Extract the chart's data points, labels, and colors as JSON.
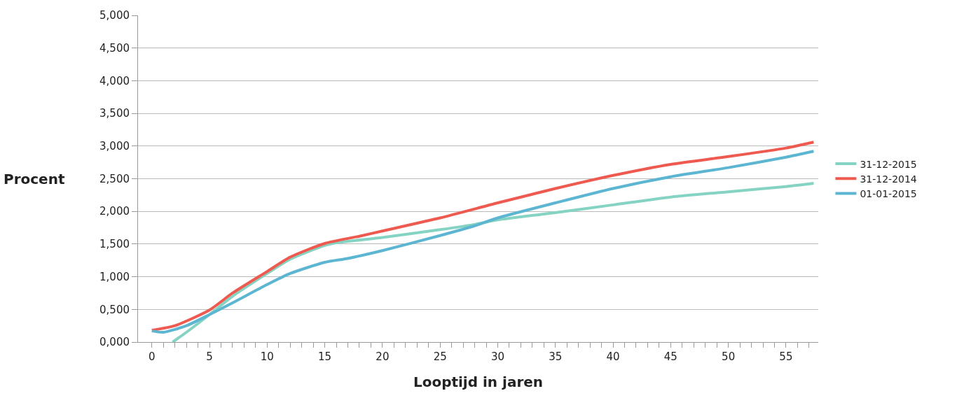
{
  "chart_data": {
    "type": "line",
    "xlabel": "Looptijd in jaren",
    "ylabel": "Procent",
    "xlim": [
      -1.2,
      57.8
    ],
    "xticks": [
      {
        "value": 0,
        "label": "0"
      },
      {
        "value": 1,
        "label": null
      },
      {
        "value": 2,
        "label": null
      },
      {
        "value": 3,
        "label": null
      },
      {
        "value": 4,
        "label": null
      },
      {
        "value": 5,
        "label": "5"
      },
      {
        "value": 6,
        "label": null
      },
      {
        "value": 7,
        "label": null
      },
      {
        "value": 8,
        "label": null
      },
      {
        "value": 9,
        "label": null
      },
      {
        "value": 10,
        "label": "10"
      },
      {
        "value": 11,
        "label": null
      },
      {
        "value": 12,
        "label": null
      },
      {
        "value": 13,
        "label": null
      },
      {
        "value": 14,
        "label": null
      },
      {
        "value": 15,
        "label": "15"
      },
      {
        "value": 16,
        "label": null
      },
      {
        "value": 17,
        "label": null
      },
      {
        "value": 18,
        "label": null
      },
      {
        "value": 19,
        "label": null
      },
      {
        "value": 20,
        "label": "20"
      },
      {
        "value": 21,
        "label": null
      },
      {
        "value": 22,
        "label": null
      },
      {
        "value": 23,
        "label": null
      },
      {
        "value": 24,
        "label": null
      },
      {
        "value": 25,
        "label": "25"
      },
      {
        "value": 26,
        "label": null
      },
      {
        "value": 27,
        "label": null
      },
      {
        "value": 28,
        "label": null
      },
      {
        "value": 29,
        "label": null
      },
      {
        "value": 30,
        "label": "30"
      },
      {
        "value": 31,
        "label": null
      },
      {
        "value": 32,
        "label": null
      },
      {
        "value": 33,
        "label": null
      },
      {
        "value": 34,
        "label": null
      },
      {
        "value": 35,
        "label": "35"
      },
      {
        "value": 36,
        "label": null
      },
      {
        "value": 37,
        "label": null
      },
      {
        "value": 38,
        "label": null
      },
      {
        "value": 39,
        "label": null
      },
      {
        "value": 40,
        "label": "40"
      },
      {
        "value": 41,
        "label": null
      },
      {
        "value": 42,
        "label": null
      },
      {
        "value": 43,
        "label": null
      },
      {
        "value": 44,
        "label": null
      },
      {
        "value": 45,
        "label": "45"
      },
      {
        "value": 46,
        "label": null
      },
      {
        "value": 47,
        "label": null
      },
      {
        "value": 48,
        "label": null
      },
      {
        "value": 49,
        "label": null
      },
      {
        "value": 50,
        "label": "50"
      },
      {
        "value": 51,
        "label": null
      },
      {
        "value": 52,
        "label": null
      },
      {
        "value": 53,
        "label": null
      },
      {
        "value": 54,
        "label": null
      },
      {
        "value": 55,
        "label": "55"
      },
      {
        "value": 56,
        "label": null
      },
      {
        "value": 57,
        "label": null
      }
    ],
    "ylim": [
      0,
      5
    ],
    "yticks": [
      {
        "value": 0,
        "label": "0,000"
      },
      {
        "value": 0.5,
        "label": "0,500"
      },
      {
        "value": 1,
        "label": "1,000"
      },
      {
        "value": 1.5,
        "label": "1,500"
      },
      {
        "value": 2,
        "label": "2,000"
      },
      {
        "value": 2.5,
        "label": "2,500"
      },
      {
        "value": 3,
        "label": "3,000"
      },
      {
        "value": 3.5,
        "label": "3,500"
      },
      {
        "value": 4,
        "label": "4,000"
      },
      {
        "value": 4.5,
        "label": "4,500"
      },
      {
        "value": 5,
        "label": "5,000"
      }
    ],
    "grid": "y",
    "legend": "right",
    "marker": "none",
    "line_style": "solid",
    "series": [
      {
        "name": "31-12-2015",
        "color": "#85d3c3",
        "x": [
          1.8,
          3,
          5,
          7,
          10,
          12,
          15,
          16,
          20,
          25,
          28,
          30,
          35,
          40,
          45,
          50,
          55,
          57.4
        ],
        "values": [
          0.0,
          0.15,
          0.42,
          0.7,
          1.05,
          1.27,
          1.48,
          1.52,
          1.6,
          1.72,
          1.8,
          1.87,
          1.98,
          2.1,
          2.22,
          2.3,
          2.38,
          2.43
        ]
      },
      {
        "name": "31-12-2014",
        "color": "#ee5a4f",
        "x": [
          0,
          2,
          5,
          7,
          10,
          12,
          15,
          18,
          20,
          25,
          30,
          35,
          40,
          45,
          50,
          55,
          57.4
        ],
        "values": [
          0.18,
          0.25,
          0.49,
          0.75,
          1.08,
          1.3,
          1.51,
          1.62,
          1.7,
          1.9,
          2.13,
          2.35,
          2.55,
          2.72,
          2.84,
          2.97,
          3.06
        ]
      },
      {
        "name": "01-01-2015",
        "color": "#5cb6d1",
        "x": [
          0,
          1,
          3,
          5,
          7,
          10,
          12,
          15,
          17,
          20,
          25,
          28,
          30,
          35,
          40,
          45,
          50,
          55,
          57.4
        ],
        "values": [
          0.17,
          0.15,
          0.25,
          0.42,
          0.6,
          0.88,
          1.05,
          1.22,
          1.28,
          1.4,
          1.63,
          1.78,
          1.9,
          2.13,
          2.35,
          2.53,
          2.67,
          2.83,
          2.92
        ]
      }
    ]
  }
}
